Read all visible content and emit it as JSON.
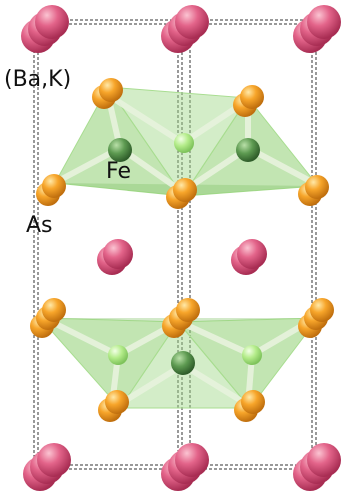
{
  "labels": {
    "barium_potassium": "(Ba,K)",
    "iron": "Fe",
    "arsenic": "As"
  },
  "colors": {
    "barium_potassium": "#e0607f",
    "iron": "#5e9a52",
    "iron_light": "#b8ef92",
    "arsenic": "#f2a023",
    "tetrahedron": "#8fcf73",
    "bond": "#e6f2dc",
    "cell_edge": "#222222"
  }
}
